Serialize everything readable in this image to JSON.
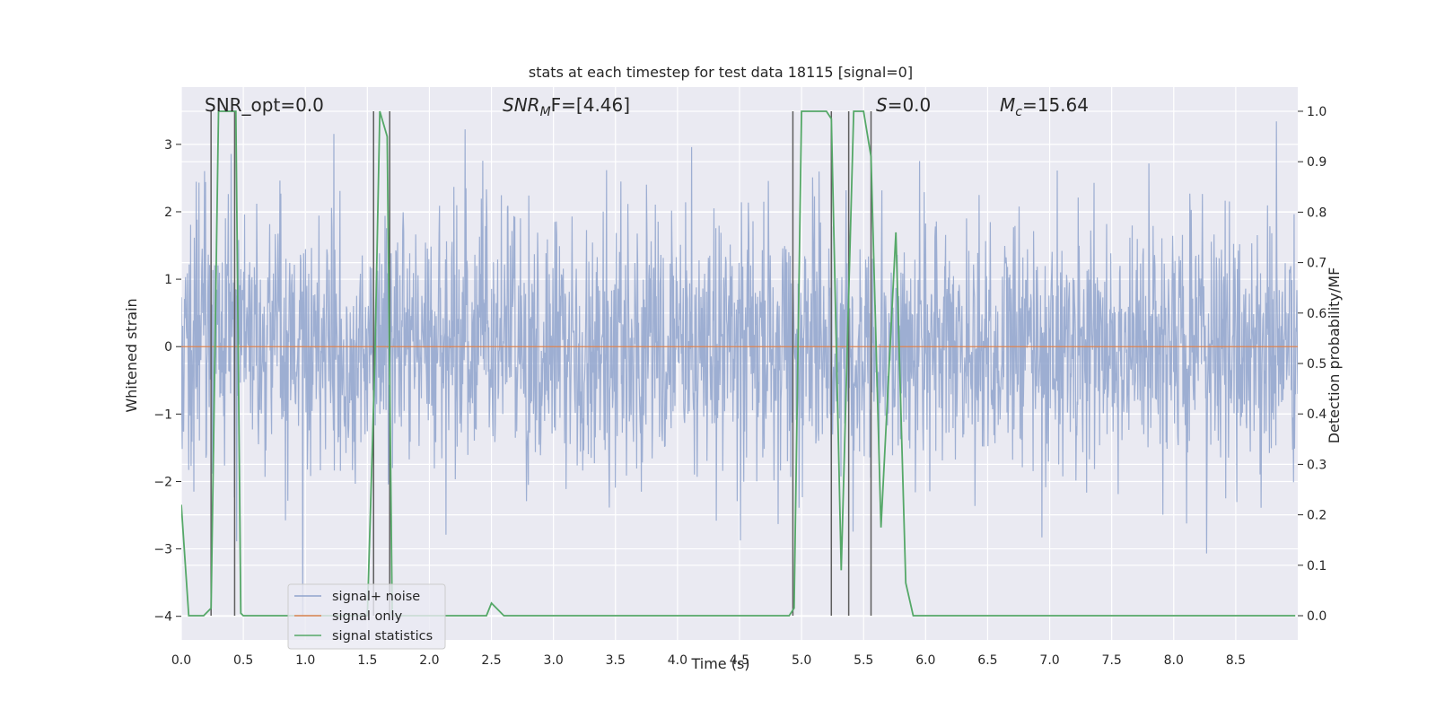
{
  "chart_data": {
    "type": "line",
    "title": "stats at each timestep for test data 18115 [signal=0]",
    "xlabel": "Time (s)",
    "ylabel_left": "Whitened strain",
    "ylabel_right": "Detection probability/MF",
    "xlim": [
      0.0,
      9.0
    ],
    "ylim_left": [
      -4.35,
      3.85
    ],
    "ylim_right": [
      -0.048,
      1.048
    ],
    "x_ticks": [
      "0.0",
      "0.5",
      "1.0",
      "1.5",
      "2.0",
      "2.5",
      "3.0",
      "3.5",
      "4.0",
      "4.5",
      "5.0",
      "5.5",
      "6.0",
      "6.5",
      "7.0",
      "7.5",
      "8.0",
      "8.5"
    ],
    "y_left_ticks": [
      "3",
      "2",
      "1",
      "0",
      "−1",
      "−2",
      "−3",
      "−4"
    ],
    "y_right_ticks": [
      "1.0",
      "0.9",
      "0.8",
      "0.7",
      "0.6",
      "0.5",
      "0.4",
      "0.3",
      "0.2",
      "0.1",
      "0.0"
    ],
    "grid": true,
    "legend_placement": "lower-left",
    "annotations": {
      "snr_opt": "SNR_opt=0.0",
      "snr_mf_base": "SNR",
      "snr_mf_sub": "M",
      "snr_mf_rest": "F=[4.46]",
      "s_base": "S",
      "s_rest": "=0.0",
      "mc_base": "M",
      "mc_sub": "c",
      "mc_rest": "=15.64"
    },
    "series": [
      {
        "name": "signal+ noise",
        "axis": "left",
        "color": "#8fa3cc",
        "note": "whitened noise, amplitude roughly within -1.8..1.8 with spikes up to about 3.4 and down to about -4"
      },
      {
        "name": "signal only",
        "axis": "left",
        "color": "#dd8452",
        "x": [
          0,
          9
        ],
        "y": [
          0,
          0
        ]
      },
      {
        "name": "signal statistics",
        "axis": "right",
        "color": "#55a868",
        "x": [
          0.0,
          0.06,
          0.18,
          0.24,
          0.3,
          0.36,
          0.44,
          0.48,
          0.5,
          0.56,
          1.5,
          1.56,
          1.6,
          1.66,
          1.7,
          2.46,
          2.5,
          2.6,
          4.9,
          4.94,
          5.0,
          5.2,
          5.24,
          5.32,
          5.42,
          5.5,
          5.56,
          5.64,
          5.76,
          5.84,
          5.9,
          8.98
        ],
        "y": [
          0.22,
          0.0,
          0.0,
          0.015,
          1.0,
          1.0,
          1.0,
          0.005,
          0.0,
          0.0,
          0.0,
          0.5,
          1.0,
          0.95,
          0.0,
          0.0,
          0.025,
          0.0,
          0.0,
          0.015,
          1.0,
          1.0,
          0.985,
          0.09,
          1.0,
          1.0,
          0.91,
          0.175,
          0.76,
          0.065,
          0.0,
          0.0
        ]
      }
    ],
    "vertical_lines_x": [
      0.24,
      0.43,
      1.55,
      1.68,
      4.93,
      5.24,
      5.38,
      5.56
    ],
    "vertical_lines_range_right": [
      0.0,
      1.0
    ],
    "vertical_lines_color": "#5e5e5e"
  }
}
